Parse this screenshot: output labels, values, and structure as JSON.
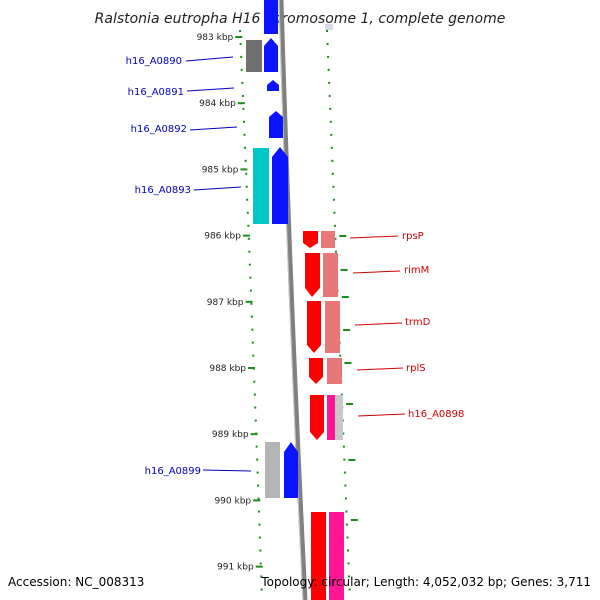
{
  "title": "Ralstonia eutropha H16 chromosome 1, complete genome",
  "footer": {
    "accession": "Accession: NC_008313",
    "summary": "Topology: circular; Length: 4,052,032 bp; Genes: 3,711"
  },
  "scale": {
    "unit": "kbp",
    "ticks": [
      {
        "label": "983 kbp",
        "kb": 983
      },
      {
        "label": "984 kbp",
        "kb": 984
      },
      {
        "label": "985 kbp",
        "kb": 985
      },
      {
        "label": "986 kbp",
        "kb": 986
      },
      {
        "label": "987 kbp",
        "kb": 987
      },
      {
        "label": "988 kbp",
        "kb": 988
      },
      {
        "label": "989 kbp",
        "kb": 989
      },
      {
        "label": "990 kbp",
        "kb": 990
      },
      {
        "label": "991 kbp",
        "kb": 991
      }
    ]
  },
  "colors": {
    "forward_cds": "#0a14ff",
    "forward_light": "#00c8c8",
    "reverse_cds": "#ff0000",
    "reverse_light": "#e87878",
    "forward_label": "#0000c0",
    "reverse_label": "#d00000",
    "grey_feature": "#707070",
    "light_grey_feature": "#b4b4b4",
    "pink_feature": "#ff1493",
    "backbone": "#808080",
    "tick": "#1a8c1a"
  },
  "genes": [
    {
      "name": "h16_A0890",
      "strand": "forward"
    },
    {
      "name": "h16_A0891",
      "strand": "forward"
    },
    {
      "name": "h16_A0892",
      "strand": "forward"
    },
    {
      "name": "h16_A0893",
      "strand": "forward"
    },
    {
      "name": "rpsP",
      "strand": "reverse"
    },
    {
      "name": "rimM",
      "strand": "reverse"
    },
    {
      "name": "trmD",
      "strand": "reverse"
    },
    {
      "name": "rplS",
      "strand": "reverse"
    },
    {
      "name": "h16_A0898",
      "strand": "reverse"
    },
    {
      "name": "h16_A0899",
      "strand": "forward"
    }
  ]
}
